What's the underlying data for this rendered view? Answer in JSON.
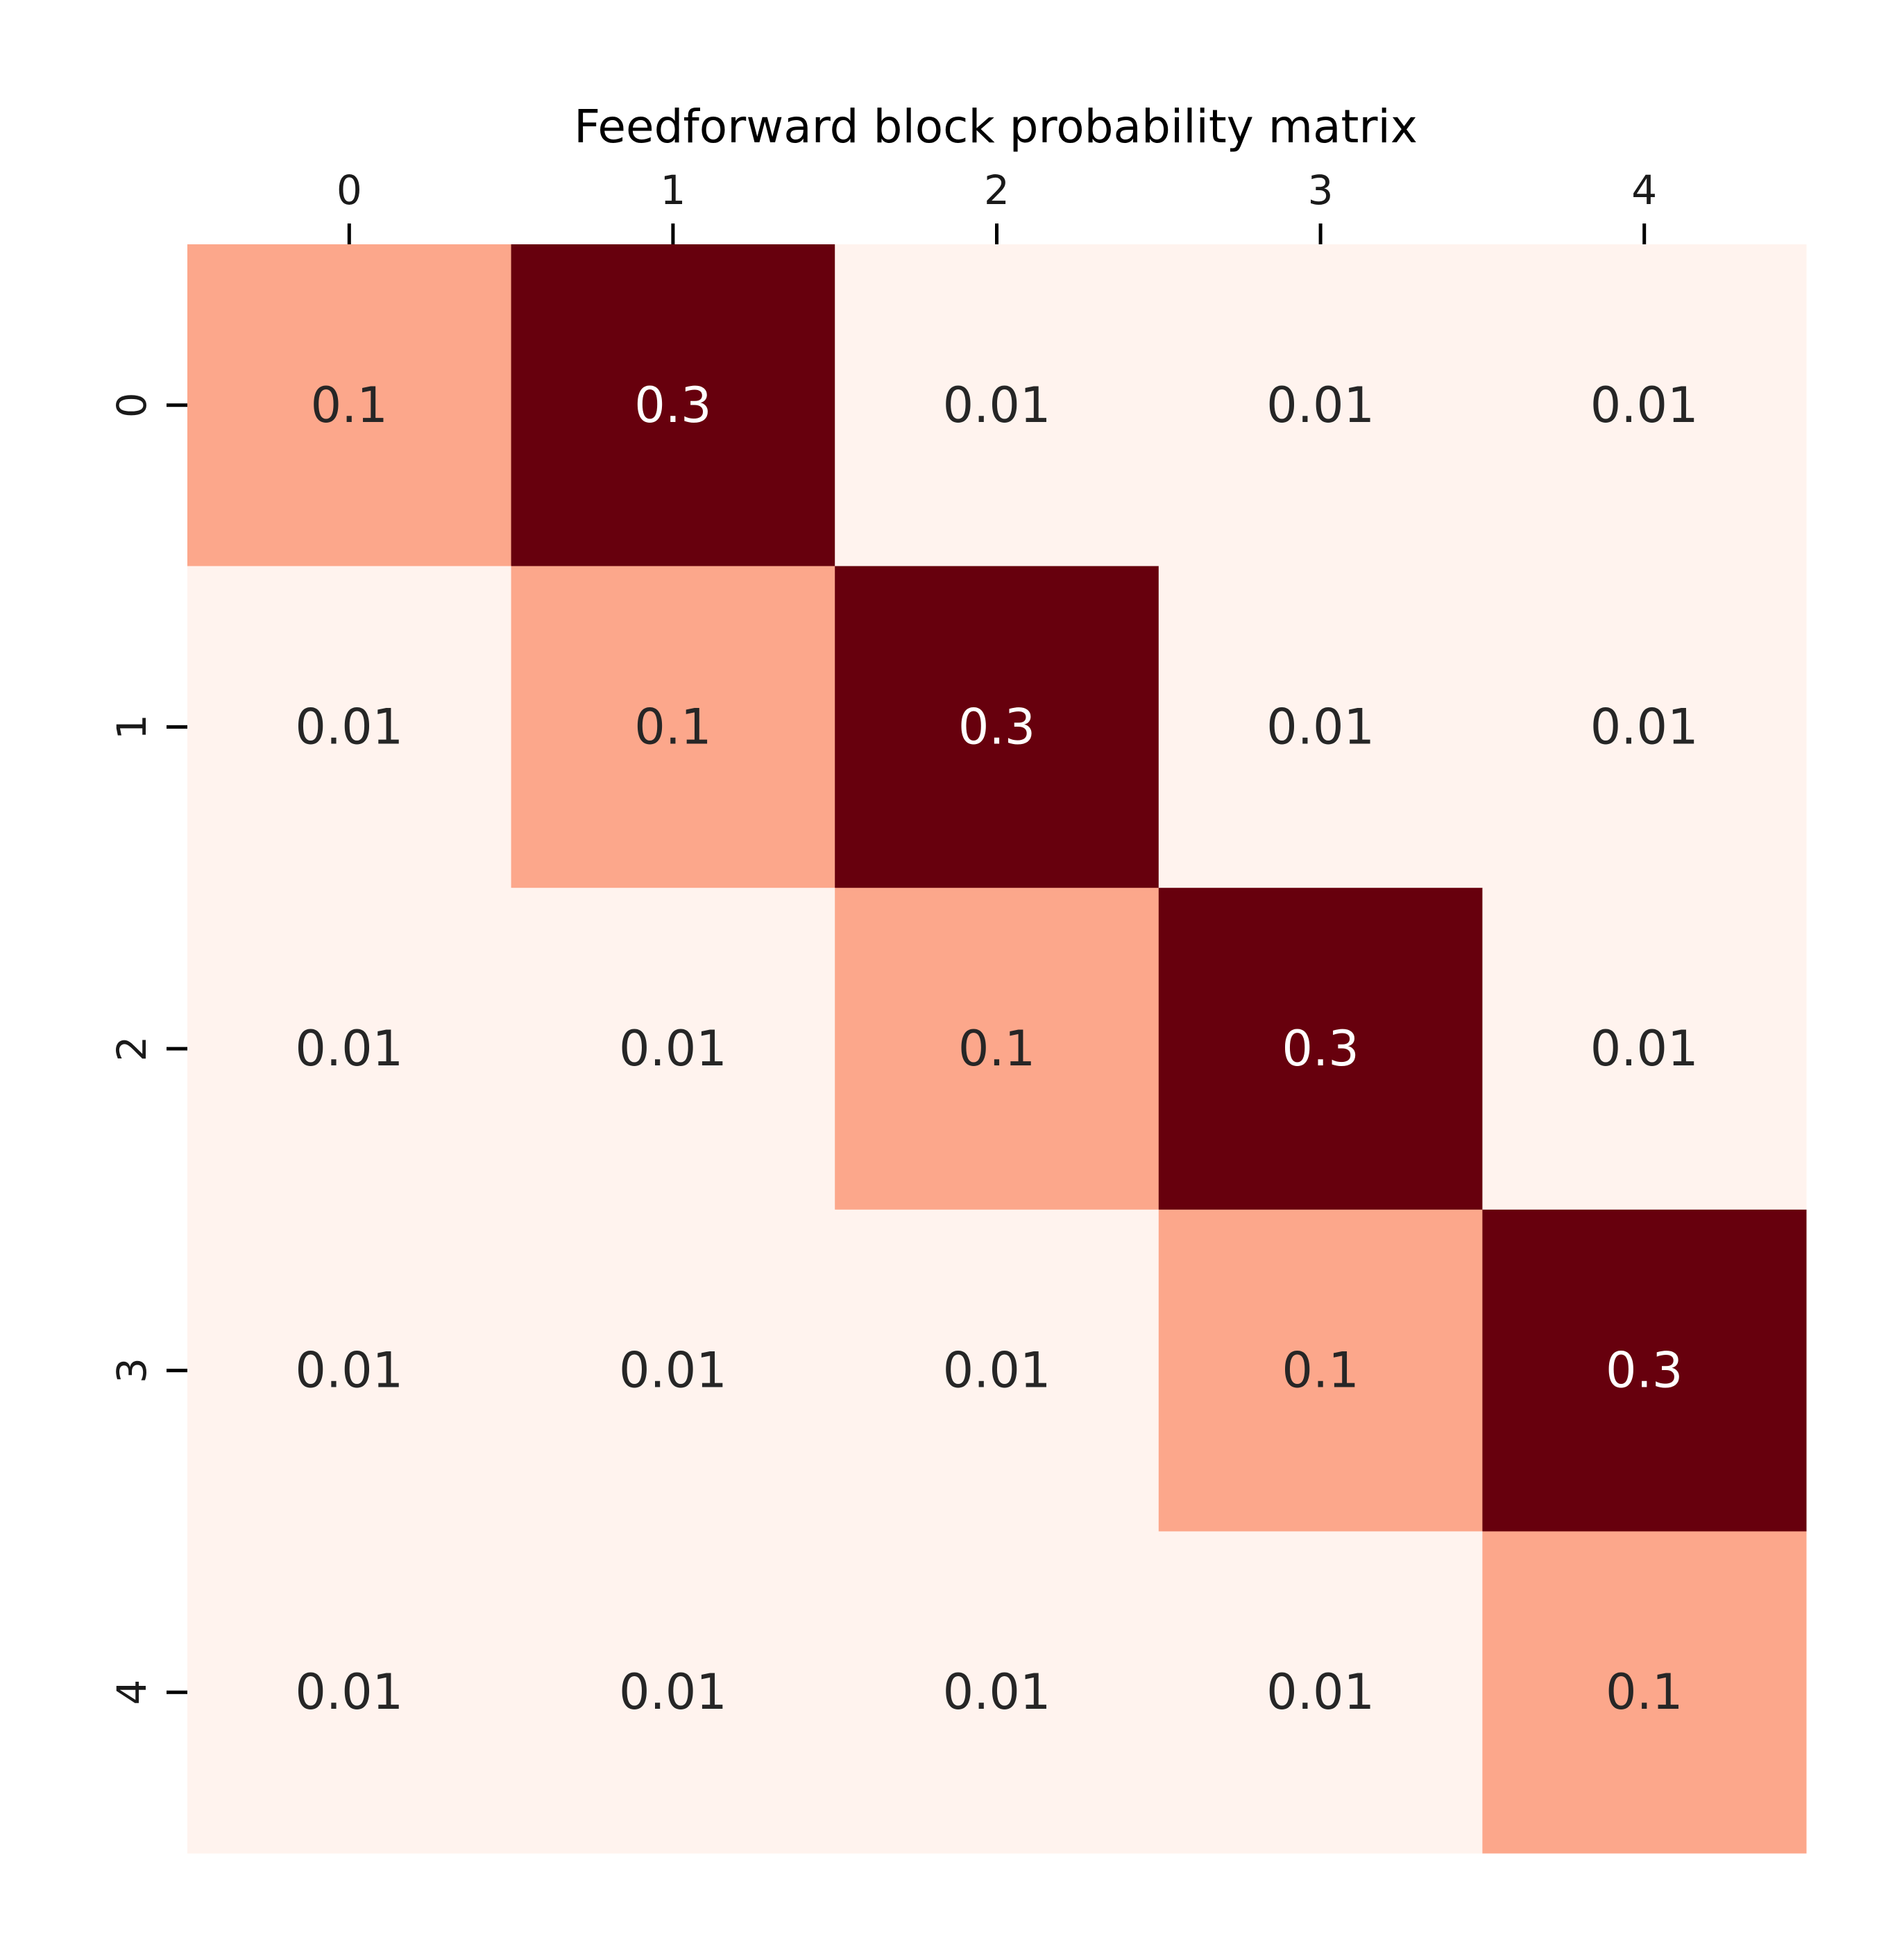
{
  "chart_data": {
    "type": "heatmap",
    "title": "Feedforward block probability matrix",
    "xlabel": "",
    "ylabel": "",
    "x_tick_labels": [
      "0",
      "1",
      "2",
      "3",
      "4"
    ],
    "y_tick_labels": [
      "0",
      "1",
      "2",
      "3",
      "4"
    ],
    "x_ticks_position": "top",
    "colormap": "Reds",
    "colorbar": false,
    "vmin": 0.01,
    "vmax": 0.3,
    "values": [
      [
        0.1,
        0.3,
        0.01,
        0.01,
        0.01
      ],
      [
        0.01,
        0.1,
        0.3,
        0.01,
        0.01
      ],
      [
        0.01,
        0.01,
        0.1,
        0.3,
        0.01
      ],
      [
        0.01,
        0.01,
        0.01,
        0.1,
        0.3
      ],
      [
        0.01,
        0.01,
        0.01,
        0.01,
        0.1
      ]
    ],
    "annotations": [
      [
        "0.1",
        "0.3",
        "0.01",
        "0.01",
        "0.01"
      ],
      [
        "0.01",
        "0.1",
        "0.3",
        "0.01",
        "0.01"
      ],
      [
        "0.01",
        "0.01",
        "0.1",
        "0.3",
        "0.01"
      ],
      [
        "0.01",
        "0.01",
        "0.01",
        "0.1",
        "0.3"
      ],
      [
        "0.01",
        "0.01",
        "0.01",
        "0.01",
        "0.1"
      ]
    ],
    "colors": {
      "0.01": "#fff3ee",
      "0.1": "#fca78b",
      "0.3": "#67000d"
    },
    "text_colors": {
      "light": "#ffffff",
      "dark": "#262626"
    }
  }
}
